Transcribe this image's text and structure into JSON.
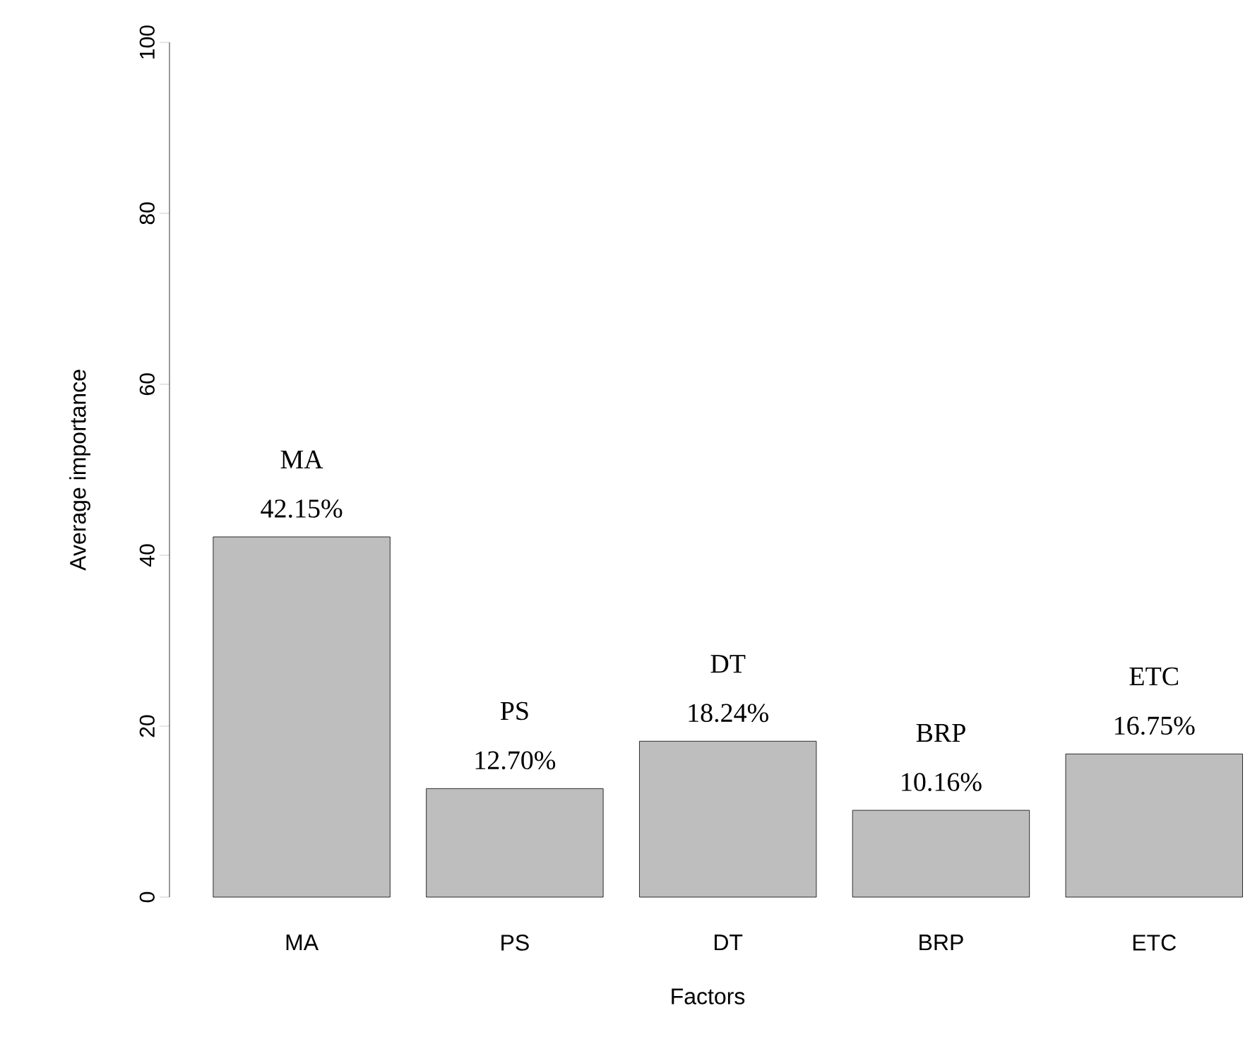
{
  "chart_data": {
    "type": "bar",
    "xlabel": "Factors",
    "ylabel": "Average importance",
    "categories": [
      "MA",
      "PS",
      "DT",
      "BRP",
      "ETC"
    ],
    "values": [
      42.15,
      12.7,
      18.24,
      10.16,
      16.75
    ],
    "value_labels": [
      "42.15%",
      "12.70%",
      "18.24%",
      "10.16%",
      "16.75%"
    ],
    "annotations": [
      {
        "text": "MA",
        "x": "MA",
        "y": 42.15
      },
      {
        "text": "PS",
        "x": "PS",
        "y": 12.7
      },
      {
        "text": "DT",
        "x": "DT",
        "y": 18.24
      },
      {
        "text": "BRP",
        "x": "BRP",
        "y": 10.16
      },
      {
        "text": "ETC",
        "x": "ETC",
        "y": 16.75
      }
    ],
    "color": "#bebebe",
    "ylim": [
      0,
      100
    ],
    "yticks": [
      0,
      20,
      40,
      60,
      80,
      100
    ]
  }
}
